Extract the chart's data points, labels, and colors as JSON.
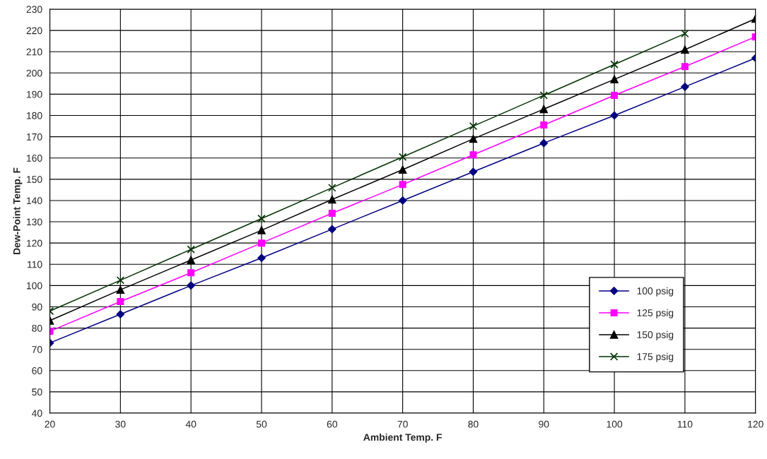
{
  "chart_data": {
    "type": "line",
    "xlabel": "Ambient Temp. F",
    "ylabel": "Dew-Point Temp. F",
    "x": [
      20,
      30,
      40,
      50,
      60,
      70,
      80,
      90,
      100,
      110,
      120
    ],
    "series": [
      {
        "name": "100 psig",
        "color": "#000080",
        "marker": "diamond",
        "values": [
          73,
          86.5,
          100,
          113,
          126.5,
          140,
          153.5,
          167,
          180,
          193.5,
          207
        ]
      },
      {
        "name": "125 psig",
        "color": "#ff00ff",
        "marker": "square",
        "values": [
          78.5,
          92.5,
          106,
          120,
          134,
          147.5,
          161.5,
          175.5,
          189.5,
          203,
          217
        ]
      },
      {
        "name": "150 psig",
        "color": "#000000",
        "marker": "triangle",
        "values": [
          83.5,
          98,
          112,
          126,
          140.5,
          154.5,
          169,
          183,
          197,
          211,
          225.5
        ]
      },
      {
        "name": "175 psig",
        "color": "#003300",
        "marker": "cross",
        "values": [
          88,
          102.5,
          117,
          131.5,
          146,
          160.5,
          175,
          189.5,
          204,
          218.5,
          null
        ]
      }
    ],
    "xlim": [
      20,
      120
    ],
    "xticks": [
      20,
      30,
      40,
      50,
      60,
      70,
      80,
      90,
      100,
      110,
      120
    ],
    "ylim": [
      40,
      230
    ],
    "yticks": [
      40,
      50,
      60,
      70,
      80,
      90,
      100,
      110,
      120,
      130,
      140,
      150,
      160,
      170,
      180,
      190,
      200,
      210,
      220,
      230
    ],
    "grid": true,
    "legend": "bottom right",
    "line_style": "solid"
  }
}
